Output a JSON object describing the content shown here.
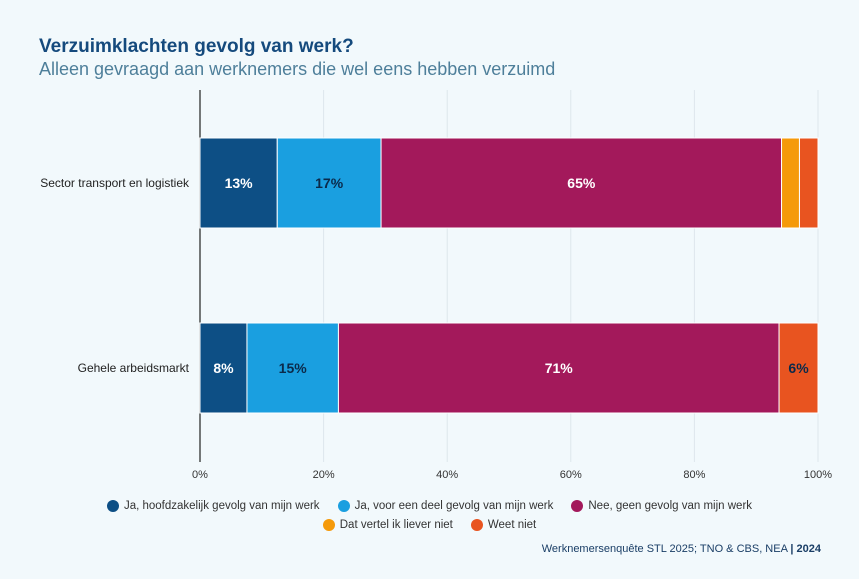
{
  "header": {
    "title": "Verzuimklachten gevolg van werk?",
    "subtitle": "Alleen gevraagd aan werknemers die wel eens hebben verzuimd"
  },
  "chart_data": {
    "type": "bar",
    "orientation": "horizontal",
    "stacked": true,
    "categories": [
      "Sector transport en logistiek",
      "Gehele arbeidsmarkt"
    ],
    "series": [
      {
        "name": "Ja, hoofdzakelijk gevolg van mijn werk",
        "color": "#0d4f85",
        "values": [
          12.5,
          7.6
        ],
        "labels": [
          "13%",
          "8%"
        ],
        "label_color": "#ffffff"
      },
      {
        "name": "Ja, voor een deel gevolg van mijn werk",
        "color": "#1a9fe0",
        "values": [
          16.8,
          14.8
        ],
        "labels": [
          "17%",
          "15%"
        ],
        "label_color": "#0b2a4a"
      },
      {
        "name": "Nee, geen gevolg van mijn werk",
        "color": "#a3195b",
        "values": [
          64.8,
          71.3
        ],
        "labels": [
          "65%",
          "71%"
        ],
        "label_color": "#ffffff"
      },
      {
        "name": "Dat vertel ik liever niet",
        "color": "#f59a0a",
        "values": [
          2.9,
          0
        ],
        "labels": [
          "",
          ""
        ],
        "label_color": "#0b2a4a"
      },
      {
        "name": "Weet niet",
        "color": "#e85420",
        "values": [
          3.0,
          6.3
        ],
        "labels": [
          "",
          "6%"
        ],
        "label_color": "#0b2a4a"
      }
    ],
    "x_ticks": [
      "0%",
      "20%",
      "40%",
      "60%",
      "80%",
      "100%"
    ],
    "xlim": [
      0,
      100
    ],
    "grid": true,
    "legend_position": "bottom"
  },
  "footer": {
    "source": "Werknemersenquête STL 2025; TNO & CBS, NEA",
    "separator": "|",
    "year": "2024"
  }
}
